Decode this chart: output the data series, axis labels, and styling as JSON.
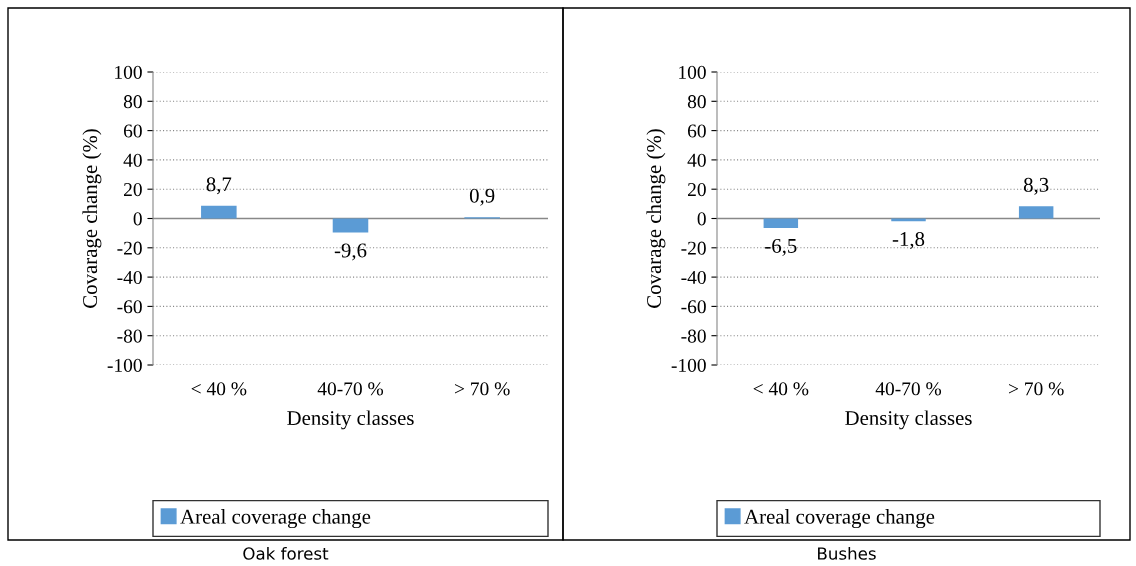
{
  "chart_data": [
    {
      "type": "bar",
      "categories": [
        "< 40 %",
        "40-70 %",
        "> 70 %"
      ],
      "xlabel": "Density classes",
      "ylabel": "Covarage change (%)",
      "ylim": [
        -100,
        100
      ],
      "yticks": [
        -100,
        -80,
        -60,
        -40,
        -20,
        0,
        20,
        40,
        60,
        80,
        100
      ],
      "grid": "y",
      "legend": "bottom",
      "annotations": [
        "Oak forest"
      ],
      "series": [
        {
          "name": "Areal coverage change",
          "color": "#5b9bd5",
          "values": [
            8.7,
            -9.6,
            0.9
          ],
          "value_labels": [
            "8,7",
            "-9,6",
            "0,9"
          ]
        }
      ]
    },
    {
      "type": "bar",
      "categories": [
        "< 40 %",
        "40-70 %",
        "> 70 %"
      ],
      "xlabel": "Density classes",
      "ylabel": "Covarage change (%)",
      "ylim": [
        -100,
        100
      ],
      "yticks": [
        -100,
        -80,
        -60,
        -40,
        -20,
        0,
        20,
        40,
        60,
        80,
        100
      ],
      "grid": "y",
      "legend": "bottom",
      "annotations": [
        "Bushes"
      ],
      "series": [
        {
          "name": "Areal coverage change",
          "color": "#5b9bd5",
          "values": [
            -6.5,
            -1.8,
            8.3
          ],
          "value_labels": [
            "-6,5",
            "-1,8",
            "8,3"
          ]
        }
      ]
    }
  ]
}
